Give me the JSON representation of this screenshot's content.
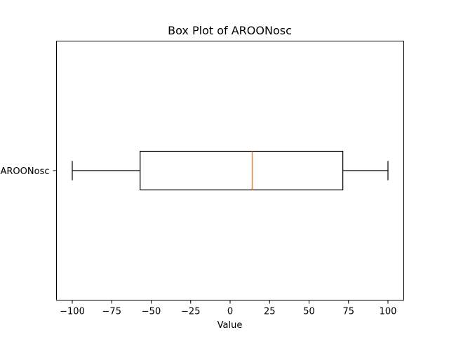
{
  "chart_data": {
    "type": "box",
    "orientation": "horizontal",
    "title": "Box Plot of AROONosc",
    "xlabel": "Value",
    "ylabel": "",
    "xlim": [
      -110,
      110
    ],
    "xticks": [
      -100,
      -75,
      -50,
      -25,
      0,
      25,
      50,
      75,
      100
    ],
    "xtick_labels": [
      "−100",
      "−75",
      "−50",
      "−25",
      "0",
      "25",
      "50",
      "75",
      "100"
    ],
    "categories": [
      "AROONosc"
    ],
    "series": [
      {
        "whisker_low": -100,
        "q1": -57,
        "median": 14,
        "q3": 71.4,
        "whisker_high": 100
      }
    ],
    "grid": false,
    "colors": {
      "median": "#ff7f0e",
      "box": "#000000"
    }
  }
}
